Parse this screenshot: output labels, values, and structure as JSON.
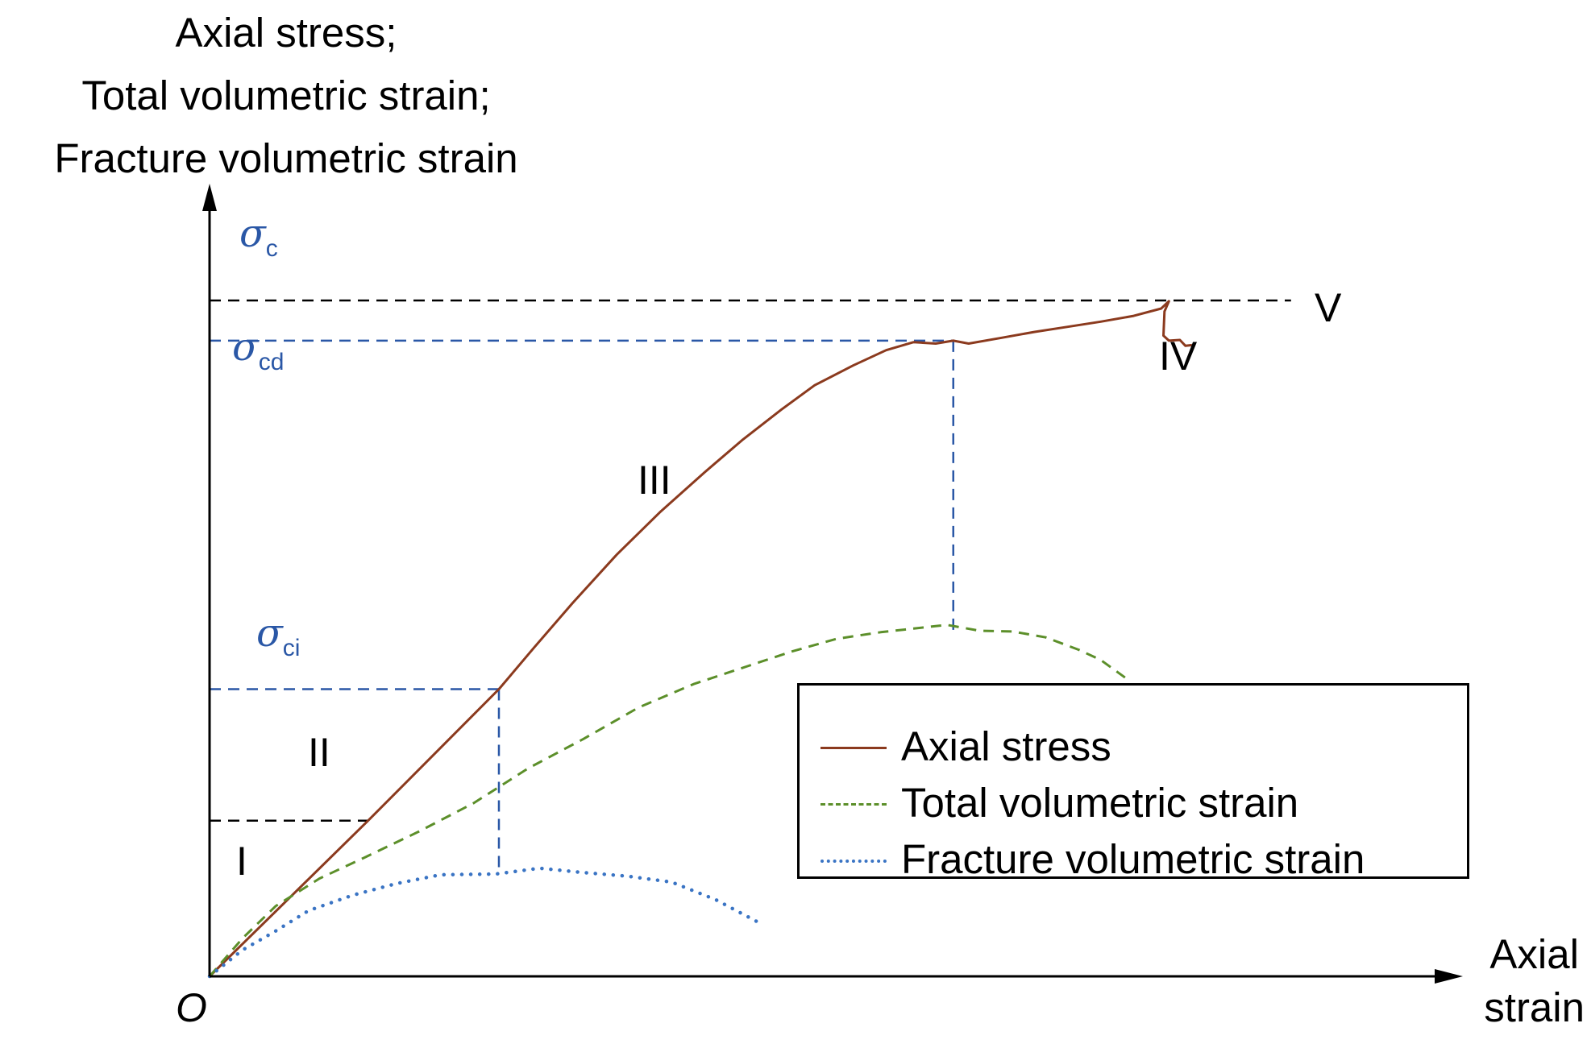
{
  "chart_data": {
    "type": "line",
    "title": "",
    "ylabel_lines": [
      "Axial stress;",
      "Total volumetric strain;",
      "Fracture volumetric strain"
    ],
    "xlabel_lines": [
      "Axial",
      "strain"
    ],
    "origin_label": "O",
    "xlim": [
      0,
      100
    ],
    "ylim": [
      0,
      100
    ],
    "stages": [
      "I",
      "II",
      "III",
      "IV",
      "V"
    ],
    "thresholds": [
      {
        "symbol": "σ",
        "sub": "c",
        "value": 92.5,
        "color": "#2a57a6"
      },
      {
        "symbol": "σ",
        "sub": "cd",
        "value": 87.0,
        "color": "#2a57a6"
      },
      {
        "symbol": "σ",
        "sub": "ci",
        "value": 39.3,
        "color": "#2a57a6"
      }
    ],
    "guides": {
      "sigma_cd_strain": 67.6,
      "sigma_ci_strain": 26.3,
      "crack_closure_stress": 21.3,
      "crack_closure_strain": 14.4
    },
    "series": [
      {
        "name": "Axial stress",
        "color": "#8b3a1e",
        "style": "solid",
        "x": [
          0,
          14.4,
          26.3,
          29.5,
          33,
          37,
          41,
          45,
          48.5,
          52,
          55,
          58.5,
          61.5,
          64,
          66,
          67.6,
          69,
          72,
          75,
          78,
          81,
          84,
          86.5,
          87.2,
          86.8,
          86.7,
          87.2,
          88.2,
          88.7,
          89.3
        ],
        "y": [
          0,
          21.3,
          39.3,
          45.0,
          51.1,
          57.7,
          63.6,
          69.0,
          73.5,
          77.6,
          80.9,
          83.6,
          85.7,
          86.8,
          86.6,
          87.0,
          86.6,
          87.4,
          88.2,
          88.9,
          89.6,
          90.4,
          91.4,
          92.4,
          91.0,
          87.7,
          87.0,
          87.1,
          86.3,
          86.4
        ]
      },
      {
        "name": "Total volumetric strain",
        "color": "#5c8f2a",
        "style": "dashed",
        "x": [
          0,
          3,
          6,
          10,
          14,
          19,
          24,
          29,
          34,
          39,
          44,
          49,
          53,
          57,
          61,
          64,
          67,
          70,
          73,
          76,
          79,
          81,
          83.3
        ],
        "y": [
          0,
          5.2,
          9.6,
          13.4,
          16.2,
          19.8,
          23.7,
          28.5,
          32.5,
          36.8,
          40.0,
          42.5,
          44.5,
          46.2,
          47.1,
          47.6,
          48.1,
          47.3,
          47.2,
          46.4,
          44.7,
          43.3,
          40.8
        ]
      },
      {
        "name": "Fracture volumetric strain",
        "color": "#3a74c4",
        "style": "dotted",
        "x": [
          0,
          3,
          6,
          9,
          13,
          17,
          21,
          26,
          30,
          34,
          38,
          42,
          46,
          50
        ],
        "y": [
          0,
          3.6,
          6.2,
          9.0,
          11.1,
          12.7,
          13.9,
          14.0,
          14.8,
          14.2,
          13.7,
          12.9,
          10.5,
          7.3
        ]
      }
    ]
  },
  "legend": {
    "items": [
      {
        "label": "Axial stress"
      },
      {
        "label": "Total volumetric strain"
      },
      {
        "label": "Fracture volumetric strain"
      }
    ]
  }
}
